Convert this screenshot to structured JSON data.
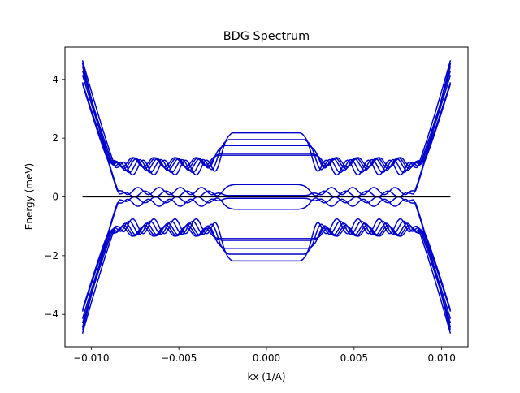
{
  "chart_data": {
    "type": "line",
    "title": "BDG Spectrum",
    "xlabel": "kx (1/A)",
    "ylabel": "Energy (meV)",
    "xlim": [
      -0.0115,
      0.0115
    ],
    "ylim": [
      -5.1,
      5.1
    ],
    "xticks": [
      {
        "value": -0.01,
        "label": "−0.010"
      },
      {
        "value": -0.005,
        "label": "−0.005"
      },
      {
        "value": 0.0,
        "label": "0.000"
      },
      {
        "value": 0.005,
        "label": "0.005"
      },
      {
        "value": 0.01,
        "label": "0.010"
      }
    ],
    "yticks": [
      {
        "value": -4,
        "label": "−4"
      },
      {
        "value": -2,
        "label": "−2"
      },
      {
        "value": 0,
        "label": "0"
      },
      {
        "value": 2,
        "label": "2"
      },
      {
        "value": 4,
        "label": "4"
      }
    ],
    "grid": false,
    "legend": "none",
    "band_color": "#0000cc",
    "reference_color": "#000000",
    "kx_range": [
      -0.0105,
      0.0105
    ],
    "reference_line": {
      "y": 0,
      "x": [
        -0.0105,
        0.0105
      ]
    },
    "bands": [
      {
        "edge_energy": 4.65,
        "plateau_energy": 2.18,
        "plateau_halfwidth": 0.0019,
        "min_energy": 1.0,
        "kink_k": 0.0086,
        "oscillation": 0.25
      },
      {
        "edge_energy": 4.3,
        "plateau_energy": 1.95,
        "plateau_halfwidth": 0.0021,
        "min_energy": 1.05,
        "kink_k": 0.0087,
        "oscillation": 0.22
      },
      {
        "edge_energy": 4.15,
        "plateau_energy": 1.75,
        "plateau_halfwidth": 0.0023,
        "min_energy": 1.1,
        "kink_k": 0.0088,
        "oscillation": 0.2
      },
      {
        "edge_energy": 3.9,
        "plateau_energy": 1.48,
        "plateau_halfwidth": 0.0024,
        "min_energy": 1.15,
        "kink_k": 0.0089,
        "oscillation": 0.18
      },
      {
        "edge_energy": 3.85,
        "plateau_energy": 1.42,
        "plateau_halfwidth": 0.0025,
        "min_energy": 1.18,
        "kink_k": 0.009,
        "oscillation": 0.16
      },
      {
        "edge_energy": 4.45,
        "plateau_energy": 0.42,
        "plateau_halfwidth": 0.0018,
        "min_energy": 0.1,
        "kink_k": 0.0084,
        "oscillation": 0.1
      },
      {
        "edge_energy": 4.55,
        "plateau_energy": 0.05,
        "plateau_halfwidth": 0.0022,
        "min_energy": 0.2,
        "kink_k": 0.0085,
        "oscillation": 0.12
      }
    ]
  }
}
